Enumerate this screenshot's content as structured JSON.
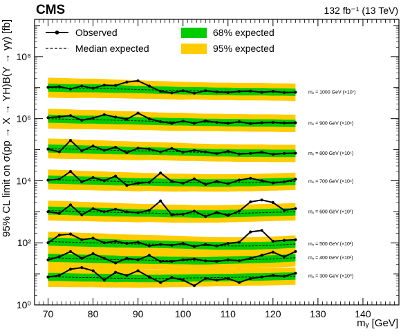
{
  "header": {
    "experiment": "CMS",
    "luminosity": "132 fb⁻¹ (13 TeV)"
  },
  "chart_data": {
    "type": "line",
    "xlabel": "mᵧ [GeV]",
    "ylabel": "95% CL limit on σ(pp → X → YH)B(Y → γγ) [fb]",
    "xlim": [
      67,
      148
    ],
    "ylim_log10": [
      0,
      9.2
    ],
    "y_scale": "log",
    "grid": false,
    "x_ticks": [
      "70",
      "80",
      "90",
      "100",
      "110",
      "120",
      "130",
      "140"
    ],
    "x_tick_values": [
      70,
      80,
      90,
      100,
      110,
      120,
      130,
      140
    ],
    "y_ticks": [
      "10⁰",
      "10²",
      "10⁴",
      "10⁶",
      "10⁸"
    ],
    "y_tick_exponents": [
      0,
      2,
      4,
      6,
      8
    ],
    "legend": {
      "placement": "top",
      "entries": [
        "Observed",
        "Median expected",
        "68% expected",
        "95% expected"
      ]
    },
    "colors": {
      "observed": "#000000",
      "expected": "#000000",
      "band68": "#00cc00",
      "band95": "#ffcc00"
    },
    "x_grid": [
      70,
      72.5,
      75,
      77.5,
      80,
      82.5,
      85,
      87.5,
      90,
      92.5,
      95,
      97.5,
      100,
      102.5,
      105,
      107.5,
      110,
      112.5,
      115,
      117.5,
      120,
      122.5,
      125
    ],
    "series": [
      {
        "label": "mₓ = 1000 GeV (×10⁷)",
        "expected": [
          7.0,
          6.99,
          6.98,
          6.98,
          6.98,
          6.97,
          6.96,
          6.95,
          6.94,
          6.93,
          6.92,
          6.91,
          6.9,
          6.9,
          6.89,
          6.88,
          6.88,
          6.87,
          6.87,
          6.87,
          6.86,
          6.86,
          6.85
        ],
        "band68": [
          0.13,
          0.13,
          0.13,
          0.13,
          0.13,
          0.13,
          0.13,
          0.12,
          0.12,
          0.12,
          0.12,
          0.12,
          0.12,
          0.12,
          0.12,
          0.12,
          0.12,
          0.12,
          0.12,
          0.12,
          0.12,
          0.12,
          0.12
        ],
        "band95": [
          0.32,
          0.32,
          0.32,
          0.31,
          0.31,
          0.31,
          0.3,
          0.3,
          0.3,
          0.29,
          0.29,
          0.29,
          0.29,
          0.28,
          0.28,
          0.28,
          0.28,
          0.28,
          0.28,
          0.28,
          0.28,
          0.28,
          0.28
        ],
        "observed": [
          7.01,
          7.03,
          6.96,
          7.05,
          6.98,
          7.08,
          7.07,
          7.18,
          7.22,
          7.05,
          6.88,
          6.83,
          6.9,
          6.82,
          6.9,
          6.86,
          6.84,
          6.88,
          6.89,
          6.85,
          6.88,
          6.84,
          6.85
        ]
      },
      {
        "label": "mₓ = 900 GeV (×10⁶)",
        "expected": [
          6.0,
          5.99,
          5.98,
          5.97,
          5.97,
          5.96,
          5.95,
          5.94,
          5.93,
          5.92,
          5.91,
          5.9,
          5.9,
          5.89,
          5.88,
          5.88,
          5.87,
          5.87,
          5.86,
          5.86,
          5.86,
          5.85,
          5.85
        ],
        "band68": [
          0.13,
          0.13,
          0.13,
          0.13,
          0.13,
          0.13,
          0.13,
          0.12,
          0.12,
          0.12,
          0.12,
          0.12,
          0.12,
          0.12,
          0.12,
          0.12,
          0.12,
          0.12,
          0.12,
          0.12,
          0.12,
          0.12,
          0.12
        ],
        "band95": [
          0.32,
          0.32,
          0.32,
          0.31,
          0.31,
          0.31,
          0.3,
          0.3,
          0.3,
          0.29,
          0.29,
          0.29,
          0.29,
          0.28,
          0.28,
          0.28,
          0.28,
          0.28,
          0.28,
          0.28,
          0.28,
          0.28,
          0.28
        ],
        "observed": [
          6.03,
          6.06,
          6.1,
          5.95,
          6.02,
          6.13,
          6.05,
          5.98,
          6.18,
          6.0,
          5.9,
          5.85,
          5.92,
          5.85,
          5.93,
          5.88,
          5.85,
          5.9,
          5.84,
          5.87,
          5.88,
          5.86,
          5.87
        ]
      },
      {
        "label": "mₓ = 800 GeV (×10⁵)",
        "expected": [
          5.04,
          5.03,
          5.02,
          5.01,
          5.0,
          4.99,
          4.98,
          4.97,
          4.96,
          4.96,
          4.95,
          4.94,
          4.93,
          4.92,
          4.91,
          4.9,
          4.9,
          4.89,
          4.89,
          4.89,
          4.88,
          4.88,
          4.88
        ],
        "band68": [
          0.13,
          0.13,
          0.13,
          0.13,
          0.13,
          0.13,
          0.13,
          0.12,
          0.12,
          0.12,
          0.12,
          0.12,
          0.12,
          0.12,
          0.12,
          0.12,
          0.12,
          0.12,
          0.12,
          0.12,
          0.12,
          0.12,
          0.12
        ],
        "band95": [
          0.32,
          0.32,
          0.32,
          0.31,
          0.31,
          0.31,
          0.3,
          0.3,
          0.3,
          0.29,
          0.29,
          0.29,
          0.29,
          0.28,
          0.28,
          0.28,
          0.28,
          0.28,
          0.28,
          0.28,
          0.28,
          0.28,
          0.28
        ],
        "observed": [
          5.02,
          4.93,
          5.3,
          4.96,
          5.12,
          4.98,
          5.08,
          4.9,
          5.05,
          5.02,
          4.93,
          5.04,
          4.92,
          4.98,
          4.93,
          4.87,
          4.95,
          4.86,
          4.88,
          4.92,
          4.85,
          4.88,
          4.89
        ]
      },
      {
        "label": "mₓ = 700 GeV (×10⁴)",
        "expected": [
          4.04,
          4.03,
          4.02,
          4.01,
          4.0,
          3.99,
          3.98,
          3.97,
          3.96,
          3.96,
          3.95,
          3.94,
          3.94,
          3.94,
          3.93,
          3.93,
          3.93,
          3.94,
          3.94,
          3.95,
          3.96,
          3.97,
          3.98
        ],
        "band68": [
          0.13,
          0.13,
          0.13,
          0.13,
          0.13,
          0.13,
          0.13,
          0.12,
          0.12,
          0.12,
          0.12,
          0.12,
          0.12,
          0.12,
          0.12,
          0.12,
          0.12,
          0.12,
          0.12,
          0.12,
          0.12,
          0.12,
          0.12
        ],
        "band95": [
          0.32,
          0.32,
          0.32,
          0.31,
          0.31,
          0.31,
          0.3,
          0.3,
          0.3,
          0.29,
          0.29,
          0.29,
          0.29,
          0.28,
          0.28,
          0.28,
          0.28,
          0.28,
          0.28,
          0.28,
          0.28,
          0.28,
          0.28
        ],
        "observed": [
          4.02,
          4.05,
          4.3,
          3.96,
          4.1,
          4.0,
          4.15,
          3.85,
          3.92,
          3.95,
          4.25,
          3.98,
          3.92,
          4.06,
          3.88,
          3.98,
          3.9,
          4.02,
          4.08,
          4.0,
          3.93,
          3.96,
          4.05
        ]
      },
      {
        "label": "mₓ = 600 GeV (×10³)",
        "expected": [
          3.04,
          3.03,
          3.02,
          3.01,
          3.0,
          2.99,
          2.98,
          2.97,
          2.96,
          2.96,
          2.95,
          2.94,
          2.94,
          2.93,
          2.93,
          2.93,
          2.94,
          2.95,
          2.96,
          2.97,
          2.98,
          2.99,
          3.0
        ],
        "band68": [
          0.13,
          0.13,
          0.13,
          0.13,
          0.13,
          0.13,
          0.13,
          0.12,
          0.12,
          0.12,
          0.12,
          0.12,
          0.12,
          0.12,
          0.12,
          0.12,
          0.12,
          0.12,
          0.12,
          0.12,
          0.12,
          0.12,
          0.12
        ],
        "band95": [
          0.32,
          0.32,
          0.32,
          0.31,
          0.31,
          0.31,
          0.3,
          0.3,
          0.3,
          0.29,
          0.29,
          0.29,
          0.29,
          0.28,
          0.28,
          0.28,
          0.28,
          0.28,
          0.28,
          0.28,
          0.28,
          0.28,
          0.28
        ],
        "observed": [
          3.0,
          2.95,
          3.22,
          2.9,
          3.1,
          3.0,
          3.08,
          3.0,
          2.97,
          3.05,
          3.35,
          2.9,
          2.92,
          3.02,
          2.85,
          2.98,
          2.88,
          3.02,
          3.32,
          3.38,
          3.3,
          3.05,
          3.1
        ]
      },
      {
        "label": "mₓ = 500 GeV (×10²)",
        "expected": [
          2.04,
          2.03,
          2.02,
          2.01,
          2.0,
          1.99,
          1.98,
          1.97,
          1.96,
          1.96,
          1.95,
          1.94,
          1.93,
          1.92,
          1.91,
          1.9,
          1.9,
          1.9,
          1.9,
          1.91,
          1.92,
          1.94,
          1.96
        ],
        "band68": [
          0.13,
          0.13,
          0.13,
          0.13,
          0.13,
          0.13,
          0.13,
          0.12,
          0.12,
          0.12,
          0.12,
          0.12,
          0.12,
          0.12,
          0.12,
          0.12,
          0.12,
          0.12,
          0.12,
          0.12,
          0.12,
          0.12,
          0.12
        ],
        "band95": [
          0.32,
          0.32,
          0.32,
          0.31,
          0.31,
          0.31,
          0.3,
          0.3,
          0.3,
          0.29,
          0.29,
          0.29,
          0.29,
          0.28,
          0.28,
          0.28,
          0.28,
          0.28,
          0.28,
          0.28,
          0.28,
          0.28,
          0.28
        ],
        "observed": [
          2.0,
          2.25,
          2.28,
          2.1,
          2.15,
          2.0,
          2.05,
          1.98,
          2.02,
          1.9,
          1.95,
          1.92,
          1.98,
          1.88,
          1.95,
          1.9,
          1.98,
          2.02,
          2.35,
          2.4,
          2.05,
          2.08,
          2.1
        ]
      },
      {
        "label": "mₓ = 400 GeV (×10¹)",
        "expected": [
          1.52,
          1.51,
          1.5,
          1.49,
          1.48,
          1.47,
          1.46,
          1.45,
          1.45,
          1.44,
          1.44,
          1.43,
          1.43,
          1.42,
          1.42,
          1.43,
          1.44,
          1.45,
          1.46,
          1.47,
          1.48,
          1.5,
          1.52
        ],
        "band68": [
          0.13,
          0.13,
          0.13,
          0.13,
          0.13,
          0.13,
          0.13,
          0.12,
          0.12,
          0.12,
          0.12,
          0.12,
          0.12,
          0.12,
          0.12,
          0.12,
          0.12,
          0.12,
          0.12,
          0.12,
          0.12,
          0.12,
          0.12
        ],
        "band95": [
          0.32,
          0.32,
          0.32,
          0.31,
          0.31,
          0.31,
          0.3,
          0.3,
          0.3,
          0.29,
          0.29,
          0.29,
          0.29,
          0.28,
          0.28,
          0.28,
          0.28,
          0.28,
          0.28,
          0.28,
          0.28,
          0.28,
          0.28
        ],
        "observed": [
          1.45,
          1.55,
          1.72,
          1.5,
          1.65,
          1.5,
          1.35,
          1.5,
          1.45,
          1.6,
          1.4,
          1.4,
          1.45,
          1.48,
          1.42,
          1.4,
          1.45,
          1.42,
          1.5,
          1.6,
          1.7,
          1.55,
          1.72
        ]
      },
      {
        "label": "mₓ = 300 GeV (×10⁰)",
        "expected": [
          0.9,
          0.9,
          0.89,
          0.88,
          0.88,
          0.87,
          0.86,
          0.86,
          0.85,
          0.85,
          0.85,
          0.86,
          0.86,
          0.87,
          0.87,
          0.88,
          0.88,
          0.89,
          0.9,
          0.9,
          0.91,
          0.92,
          0.93
        ],
        "band68": [
          0.13,
          0.13,
          0.13,
          0.13,
          0.13,
          0.13,
          0.13,
          0.12,
          0.12,
          0.12,
          0.12,
          0.12,
          0.12,
          0.12,
          0.12,
          0.12,
          0.12,
          0.12,
          0.12,
          0.12,
          0.12,
          0.12,
          0.12
        ],
        "band95": [
          0.32,
          0.32,
          0.32,
          0.31,
          0.31,
          0.31,
          0.3,
          0.3,
          0.3,
          0.29,
          0.29,
          0.29,
          0.29,
          0.28,
          0.28,
          0.28,
          0.28,
          0.28,
          0.28,
          0.28,
          0.28,
          0.28,
          0.28
        ],
        "observed": [
          0.9,
          0.95,
          1.15,
          1.2,
          1.1,
          0.8,
          1.05,
          0.95,
          1.1,
          0.9,
          0.72,
          0.88,
          0.8,
          0.62,
          0.85,
          0.8,
          0.85,
          0.72,
          0.85,
          0.9,
          0.95,
          0.92,
          1.02
        ]
      }
    ]
  }
}
